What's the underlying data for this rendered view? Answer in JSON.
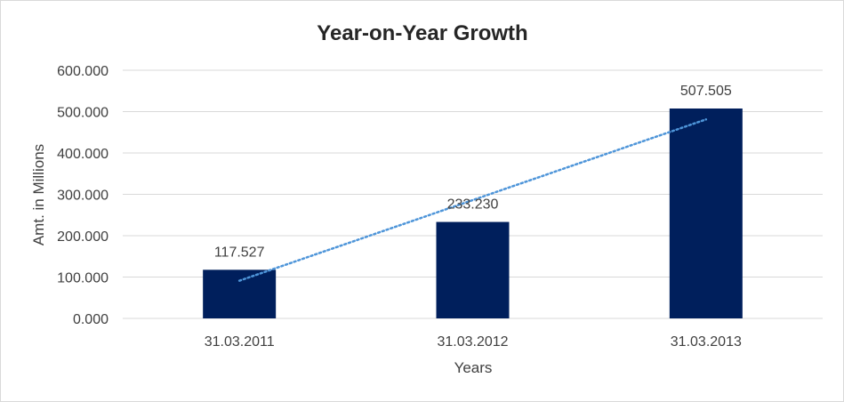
{
  "chart_data": {
    "type": "bar",
    "title": "Year-on-Year Growth",
    "xlabel": "Years",
    "ylabel": "Amt. in Millions",
    "categories": [
      "31.03.2011",
      "31.03.2012",
      "31.03.2013"
    ],
    "values": [
      117.527,
      233.23,
      507.505
    ],
    "data_labels": [
      "117.527",
      "233.230",
      "507.505"
    ],
    "y_ticks": [
      "0.000",
      "100.000",
      "200.000",
      "300.000",
      "400.000",
      "500.000",
      "600.000"
    ],
    "ylim": [
      0,
      600
    ],
    "grid": true,
    "legend": "none",
    "trendline": "linear",
    "colors": {
      "bar": "#001f5c",
      "trendline": "#4e95d9",
      "grid": "#d9d9d9"
    }
  }
}
